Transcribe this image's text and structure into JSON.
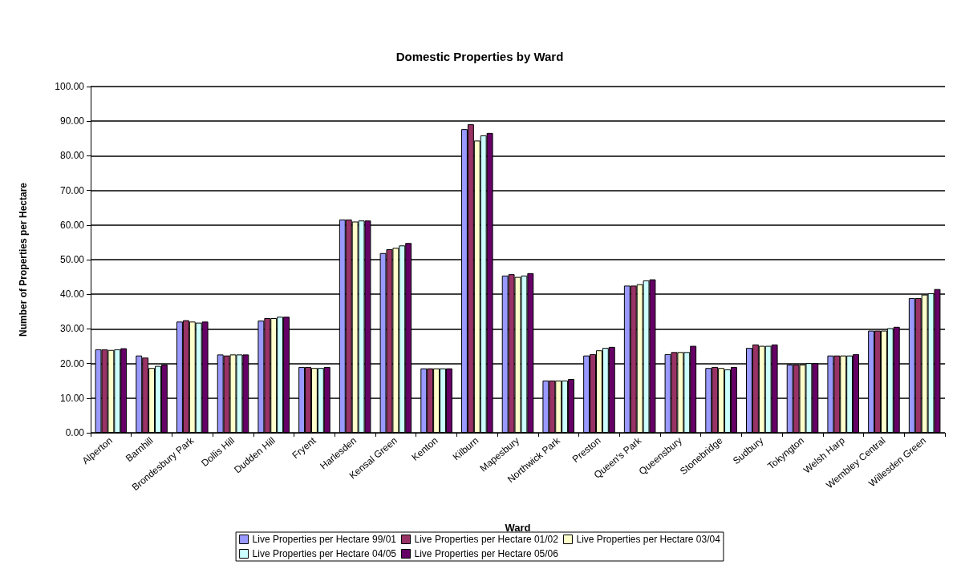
{
  "chart_data": {
    "type": "bar",
    "title": "Domestic Properties by Ward",
    "xlabel": "Ward",
    "ylabel": "Number of Properties per Hectare",
    "categories": [
      "Alperton",
      "Barnhill",
      "Brondesbury Park",
      "Dollis Hill",
      "Dudden Hill",
      "Fryent",
      "Harlesden",
      "Kensal Green",
      "Kenton",
      "Kilburn",
      "Mapesbury",
      "Northwick Park",
      "Preston",
      "Queen's Park",
      "Queensbury",
      "Stonebridge",
      "Sudbury",
      "Tokyngton",
      "Welsh Harp",
      "Wembley Central",
      "Willesden Green"
    ],
    "series": [
      {
        "name": "Live Properties per Hectare 99/01",
        "color": "#9999ff",
        "values": [
          24.1,
          22.3,
          32.1,
          22.6,
          32.4,
          19.0,
          61.6,
          51.9,
          18.6,
          87.7,
          45.4,
          15.1,
          22.3,
          42.5,
          22.7,
          18.7,
          24.5,
          19.7,
          22.3,
          29.5,
          38.9
        ]
      },
      {
        "name": "Live Properties per Hectare 01/02",
        "color": "#993366",
        "values": [
          24.1,
          21.7,
          32.5,
          22.3,
          33.1,
          19.0,
          61.6,
          53.0,
          18.6,
          89.1,
          45.8,
          15.1,
          22.7,
          42.5,
          23.3,
          19.0,
          25.5,
          19.7,
          22.3,
          29.5,
          38.9
        ]
      },
      {
        "name": "Live Properties per Hectare 03/04",
        "color": "#ffffcc",
        "values": [
          23.9,
          18.7,
          32.1,
          22.6,
          33.1,
          18.7,
          61.0,
          53.4,
          18.6,
          84.4,
          45.0,
          15.1,
          23.8,
          42.9,
          23.3,
          18.7,
          25.1,
          19.7,
          22.3,
          29.5,
          39.9
        ]
      },
      {
        "name": "Live Properties per Hectare 04/05",
        "color": "#ccffff",
        "values": [
          24.1,
          19.3,
          31.8,
          22.6,
          33.5,
          18.7,
          61.3,
          54.1,
          18.6,
          85.9,
          45.4,
          15.1,
          24.5,
          44.0,
          23.3,
          18.3,
          25.1,
          20.1,
          22.3,
          30.2,
          40.3
        ]
      },
      {
        "name": "Live Properties per Hectare 05/06",
        "color": "#660066",
        "values": [
          24.4,
          19.7,
          32.1,
          22.6,
          33.5,
          19.0,
          61.3,
          54.8,
          18.6,
          86.6,
          46.1,
          15.5,
          24.8,
          44.3,
          25.1,
          19.0,
          25.5,
          20.1,
          22.7,
          30.6,
          41.5
        ]
      }
    ],
    "ylim": [
      0,
      100
    ],
    "yticks": [
      {
        "value": 0,
        "label": "0.00"
      },
      {
        "value": 10,
        "label": "10.00"
      },
      {
        "value": 20,
        "label": "20.00"
      },
      {
        "value": 30,
        "label": "30.00"
      },
      {
        "value": 40,
        "label": "40.00"
      },
      {
        "value": 50,
        "label": "50.00"
      },
      {
        "value": 60,
        "label": "60.00"
      },
      {
        "value": 70,
        "label": "70.00"
      },
      {
        "value": 80,
        "label": "80.00"
      },
      {
        "value": 90,
        "label": "90.00"
      },
      {
        "value": 100,
        "label": "100.00"
      }
    ],
    "grid": "y",
    "legend": "bottom"
  }
}
